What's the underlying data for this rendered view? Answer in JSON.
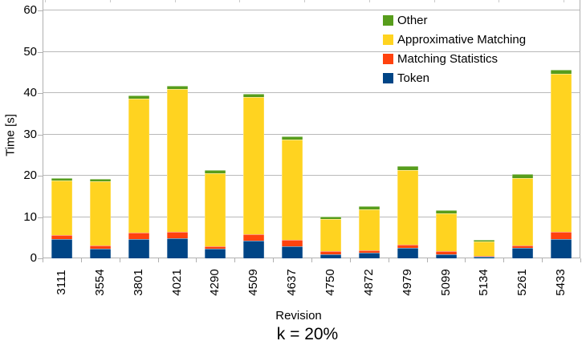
{
  "chart_data": {
    "type": "bar",
    "stacked": true,
    "xlabel": "Revision",
    "ylabel": "Time [s]",
    "caption": "k = 20%",
    "ylim": [
      0,
      60
    ],
    "yticks": [
      0,
      10,
      20,
      30,
      40,
      50,
      60
    ],
    "grid": "horizontal",
    "grid_color": "#b9b9b9",
    "axis_color": "#b0b0b0",
    "categories": [
      "3111",
      "3554",
      "3801",
      "4021",
      "4290",
      "4509",
      "4637",
      "4750",
      "4872",
      "4979",
      "5099",
      "5134",
      "5261",
      "5433"
    ],
    "series": [
      {
        "name": "Token",
        "color": "#004586",
        "values": [
          4.6,
          2.4,
          4.6,
          4.8,
          2.3,
          4.2,
          3.0,
          0.9,
          1.4,
          2.5,
          0.9,
          0.4,
          2.5,
          4.6
        ]
      },
      {
        "name": "Matching Statistics",
        "color": "#FF420E",
        "values": [
          1.0,
          0.7,
          1.6,
          1.7,
          0.7,
          1.6,
          1.4,
          0.8,
          0.6,
          0.9,
          0.8,
          0.2,
          0.6,
          1.9
        ]
      },
      {
        "name": "Approximative Matching",
        "color": "#FFD320",
        "values": [
          13.2,
          15.6,
          32.5,
          34.5,
          17.6,
          33.2,
          24.4,
          7.9,
          9.8,
          17.9,
          9.2,
          3.4,
          16.4,
          38.1
        ]
      },
      {
        "name": "Other",
        "color": "#579D1C",
        "values": [
          0.7,
          0.6,
          0.8,
          0.7,
          0.8,
          0.9,
          0.8,
          0.6,
          0.8,
          1.0,
          0.7,
          0.5,
          0.8,
          1.0
        ]
      }
    ],
    "legend_items": [
      {
        "label": "Other",
        "color": "#579D1C"
      },
      {
        "label": "Approximative Matching",
        "color": "#FFD320"
      },
      {
        "label": "Matching Statistics",
        "color": "#FF420E"
      },
      {
        "label": "Token",
        "color": "#004586"
      }
    ],
    "legend_position": "top-right"
  }
}
